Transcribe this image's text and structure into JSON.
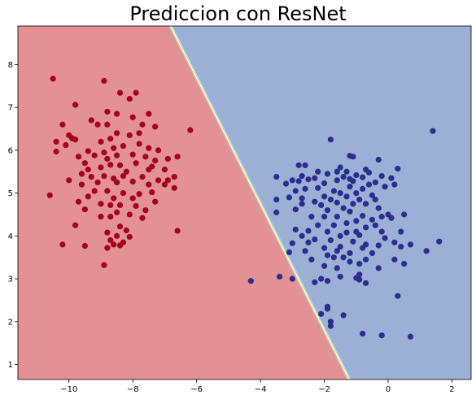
{
  "chart_data": {
    "type": "scatter",
    "title": "Prediccion con ResNet",
    "xlabel": "",
    "ylabel": "",
    "xlim": [
      -11.6,
      2.6
    ],
    "ylim": [
      0.65,
      8.9
    ],
    "xticks": [
      -10,
      -8,
      -6,
      -4,
      -2,
      0,
      2
    ],
    "yticks": [
      1,
      2,
      3,
      4,
      5,
      6,
      7,
      8
    ],
    "xtick_labels": [
      "−10",
      "−8",
      "−6",
      "−4",
      "−2",
      "0",
      "2"
    ],
    "ytick_labels": [
      "1",
      "2",
      "3",
      "4",
      "5",
      "6",
      "7",
      "8"
    ],
    "decision_boundary": {
      "points": [
        [
          -6.9,
          8.9
        ],
        [
          -1.3,
          0.65
        ]
      ],
      "left_region_color": "#e39194",
      "right_region_color": "#9cb0d6",
      "transition_colors": [
        "#f4b183",
        "#ffffbf",
        "#abd9e9"
      ]
    },
    "series": [
      {
        "color": "#a5001e",
        "points": [
          [
            -10.5,
            7.67
          ],
          [
            -8.9,
            7.62
          ],
          [
            -8.4,
            7.34
          ],
          [
            -7.9,
            7.34
          ],
          [
            -9.8,
            7.06
          ],
          [
            -8.1,
            7.2
          ],
          [
            -8.5,
            6.85
          ],
          [
            -8.0,
            6.77
          ],
          [
            -7.5,
            6.85
          ],
          [
            -8.8,
            6.9
          ],
          [
            -9.3,
            6.7
          ],
          [
            -8.8,
            6.6
          ],
          [
            -7.7,
            6.6
          ],
          [
            -10.2,
            6.6
          ],
          [
            -10.0,
            6.35
          ],
          [
            -9.8,
            6.25
          ],
          [
            -9.9,
            6.28
          ],
          [
            -9.1,
            6.6
          ],
          [
            -8.5,
            6.4
          ],
          [
            -8.1,
            6.35
          ],
          [
            -7.8,
            6.4
          ],
          [
            -7.3,
            6.55
          ],
          [
            -6.2,
            6.47
          ],
          [
            -10.4,
            6.2
          ],
          [
            -9.0,
            6.2
          ],
          [
            -8.7,
            6.27
          ],
          [
            -7.8,
            6.15
          ],
          [
            -10.1,
            6.12
          ],
          [
            -10.4,
            5.97
          ],
          [
            -8.6,
            6.05
          ],
          [
            -8.3,
            6.1
          ],
          [
            -7.5,
            6.05
          ],
          [
            -7.2,
            6.0
          ],
          [
            -9.4,
            5.98
          ],
          [
            -9.2,
            5.88
          ],
          [
            -8.9,
            5.95
          ],
          [
            -8.5,
            5.88
          ],
          [
            -8.0,
            5.9
          ],
          [
            -7.6,
            5.85
          ],
          [
            -9.7,
            5.85
          ],
          [
            -8.8,
            5.8
          ],
          [
            -7.3,
            5.76
          ],
          [
            -6.9,
            5.8
          ],
          [
            -6.6,
            5.85
          ],
          [
            -9.5,
            5.7
          ],
          [
            -8.7,
            5.66
          ],
          [
            -8.4,
            5.65
          ],
          [
            -7.9,
            5.7
          ],
          [
            -7.4,
            5.62
          ],
          [
            -9.4,
            5.55
          ],
          [
            -9.0,
            5.6
          ],
          [
            -8.2,
            5.5
          ],
          [
            -7.5,
            5.55
          ],
          [
            -7.0,
            5.55
          ],
          [
            -9.6,
            5.45
          ],
          [
            -9.3,
            5.38
          ],
          [
            -8.9,
            5.4
          ],
          [
            -8.6,
            5.34
          ],
          [
            -8.3,
            5.4
          ],
          [
            -7.7,
            5.38
          ],
          [
            -7.2,
            5.3
          ],
          [
            -6.9,
            5.3
          ],
          [
            -6.7,
            5.38
          ],
          [
            -10.0,
            5.3
          ],
          [
            -9.6,
            5.2
          ],
          [
            -9.1,
            5.25
          ],
          [
            -8.5,
            5.25
          ],
          [
            -8.0,
            5.27
          ],
          [
            -7.5,
            5.2
          ],
          [
            -7.0,
            5.2
          ],
          [
            -6.7,
            5.12
          ],
          [
            -9.2,
            5.05
          ],
          [
            -8.8,
            5.05
          ],
          [
            -8.3,
            5.0
          ],
          [
            -7.8,
            4.98
          ],
          [
            -7.4,
            5.02
          ],
          [
            -10.6,
            4.95
          ],
          [
            -9.4,
            4.92
          ],
          [
            -8.6,
            4.88
          ],
          [
            -8.0,
            4.88
          ],
          [
            -9.7,
            4.8
          ],
          [
            -9.0,
            4.75
          ],
          [
            -8.7,
            4.72
          ],
          [
            -8.4,
            4.72
          ],
          [
            -7.9,
            4.7
          ],
          [
            -7.3,
            4.8
          ],
          [
            -9.5,
            4.62
          ],
          [
            -8.5,
            4.55
          ],
          [
            -7.6,
            4.6
          ],
          [
            -8.1,
            4.5
          ],
          [
            -8.7,
            4.45
          ],
          [
            -9.0,
            4.45
          ],
          [
            -7.7,
            4.42
          ],
          [
            -9.8,
            4.25
          ],
          [
            -8.4,
            4.22
          ],
          [
            -6.6,
            4.12
          ],
          [
            -8.2,
            4.13
          ],
          [
            -8.8,
            4.08
          ],
          [
            -8.5,
            4.0
          ],
          [
            -8.1,
            3.98
          ],
          [
            -8.7,
            3.9
          ],
          [
            -8.6,
            3.8
          ],
          [
            -8.3,
            3.85
          ],
          [
            -8.4,
            3.78
          ],
          [
            -10.2,
            3.8
          ],
          [
            -9.5,
            3.77
          ],
          [
            -8.8,
            3.72
          ],
          [
            -8.9,
            3.32
          ]
        ]
      },
      {
        "color": "#2b2d8f",
        "points": [
          [
            1.4,
            6.45
          ],
          [
            -1.8,
            6.25
          ],
          [
            -1.2,
            5.87
          ],
          [
            -1.1,
            5.85
          ],
          [
            -0.3,
            5.78
          ],
          [
            -2.8,
            5.65
          ],
          [
            -2.6,
            5.65
          ],
          [
            -1.5,
            5.6
          ],
          [
            0.3,
            5.57
          ],
          [
            -0.7,
            5.55
          ],
          [
            -2.2,
            5.5
          ],
          [
            -1.6,
            5.5
          ],
          [
            -1.3,
            5.5
          ],
          [
            -0.6,
            5.48
          ],
          [
            -3.5,
            5.38
          ],
          [
            -2.7,
            5.4
          ],
          [
            -2.3,
            5.35
          ],
          [
            -1.9,
            5.45
          ],
          [
            -1.0,
            5.42
          ],
          [
            -0.8,
            5.37
          ],
          [
            -0.2,
            5.4
          ],
          [
            0.1,
            5.35
          ],
          [
            -3.0,
            5.3
          ],
          [
            -2.8,
            5.28
          ],
          [
            -2.5,
            5.32
          ],
          [
            -1.6,
            5.3
          ],
          [
            -1.4,
            5.38
          ],
          [
            -1.2,
            5.33
          ],
          [
            -0.6,
            5.2
          ],
          [
            -3.2,
            5.22
          ],
          [
            -2.0,
            5.23
          ],
          [
            -1.1,
            5.28
          ],
          [
            -0.4,
            5.25
          ],
          [
            0.2,
            5.2
          ],
          [
            -2.6,
            5.1
          ],
          [
            -2.2,
            5.12
          ],
          [
            -1.7,
            5.05
          ],
          [
            -1.2,
            5.15
          ],
          [
            -0.8,
            5.1
          ],
          [
            -1.0,
            5.0
          ],
          [
            -0.1,
            5.15
          ],
          [
            -2.9,
            5.05
          ],
          [
            -1.5,
            5.0
          ],
          [
            -2.0,
            4.92
          ],
          [
            -1.3,
            4.92
          ],
          [
            -0.5,
            4.95
          ],
          [
            -3.1,
            4.9
          ],
          [
            -3.5,
            4.85
          ],
          [
            -2.7,
            4.88
          ],
          [
            -2.3,
            4.8
          ],
          [
            -1.8,
            4.85
          ],
          [
            -0.9,
            4.85
          ],
          [
            -0.4,
            4.85
          ],
          [
            -1.6,
            4.78
          ],
          [
            -2.7,
            4.75
          ],
          [
            -2.1,
            4.72
          ],
          [
            -1.1,
            4.75
          ],
          [
            -0.7,
            4.75
          ],
          [
            -0.3,
            4.65
          ],
          [
            -1.4,
            4.65
          ],
          [
            -2.9,
            4.62
          ],
          [
            -1.9,
            4.6
          ],
          [
            -1.2,
            4.57
          ],
          [
            0.0,
            4.5
          ],
          [
            0.5,
            4.5
          ],
          [
            -3.5,
            4.55
          ],
          [
            -2.4,
            4.45
          ],
          [
            -2.0,
            4.45
          ],
          [
            -1.6,
            4.45
          ],
          [
            -0.8,
            4.47
          ],
          [
            -0.2,
            4.45
          ],
          [
            0.1,
            4.42
          ],
          [
            -1.0,
            4.35
          ],
          [
            -0.5,
            4.38
          ],
          [
            -1.3,
            4.3
          ],
          [
            -2.2,
            4.25
          ],
          [
            -1.7,
            4.25
          ],
          [
            -0.7,
            4.2
          ],
          [
            -0.4,
            4.25
          ],
          [
            -2.9,
            4.15
          ],
          [
            -2.5,
            4.12
          ],
          [
            -1.9,
            4.1
          ],
          [
            -1.3,
            4.08
          ],
          [
            -1.0,
            4.1
          ],
          [
            -0.2,
            4.1
          ],
          [
            0.4,
            4.1
          ],
          [
            -2.7,
            4.0
          ],
          [
            -1.5,
            4.0
          ],
          [
            -0.9,
            4.02
          ],
          [
            -0.1,
            3.95
          ],
          [
            0.2,
            3.85
          ],
          [
            -2.3,
            3.92
          ],
          [
            -1.8,
            3.9
          ],
          [
            -1.1,
            3.87
          ],
          [
            -2.5,
            3.85
          ],
          [
            -3.0,
            3.83
          ],
          [
            -0.7,
            3.8
          ],
          [
            -1.5,
            3.75
          ],
          [
            -0.3,
            3.78
          ],
          [
            -2.0,
            3.72
          ],
          [
            0.7,
            3.8
          ],
          [
            -0.8,
            3.72
          ],
          [
            1.6,
            3.87
          ],
          [
            0.4,
            3.75
          ],
          [
            -1.6,
            3.65
          ],
          [
            -1.2,
            3.6
          ],
          [
            -2.6,
            3.65
          ],
          [
            -3.1,
            3.62
          ],
          [
            -0.5,
            3.6
          ],
          [
            1.2,
            3.65
          ],
          [
            -1.9,
            3.55
          ],
          [
            -1.7,
            3.5
          ],
          [
            -1.4,
            3.5
          ],
          [
            -2.4,
            3.45
          ],
          [
            -0.7,
            3.45
          ],
          [
            0.2,
            3.45
          ],
          [
            -1.2,
            3.4
          ],
          [
            -0.9,
            3.35
          ],
          [
            -2.0,
            3.3
          ],
          [
            -1.6,
            3.25
          ],
          [
            -0.3,
            3.25
          ],
          [
            0.5,
            3.35
          ],
          [
            -1.5,
            3.05
          ],
          [
            -1.0,
            3.02
          ],
          [
            -0.9,
            2.98
          ],
          [
            -2.1,
            3.0
          ],
          [
            -2.3,
            2.92
          ],
          [
            -3.4,
            3.05
          ],
          [
            -3.0,
            3.0
          ],
          [
            -1.9,
            2.95
          ],
          [
            -0.7,
            2.9
          ],
          [
            -0.9,
            3.1
          ],
          [
            -4.3,
            2.95
          ],
          [
            0.3,
            2.6
          ],
          [
            -1.9,
            2.35
          ],
          [
            -1.9,
            2.3
          ],
          [
            -2.1,
            2.18
          ],
          [
            -1.4,
            2.15
          ],
          [
            -1.8,
            2.0
          ],
          [
            -1.8,
            1.9
          ],
          [
            -0.8,
            1.72
          ],
          [
            -0.2,
            1.68
          ],
          [
            0.7,
            1.65
          ]
        ]
      }
    ]
  }
}
